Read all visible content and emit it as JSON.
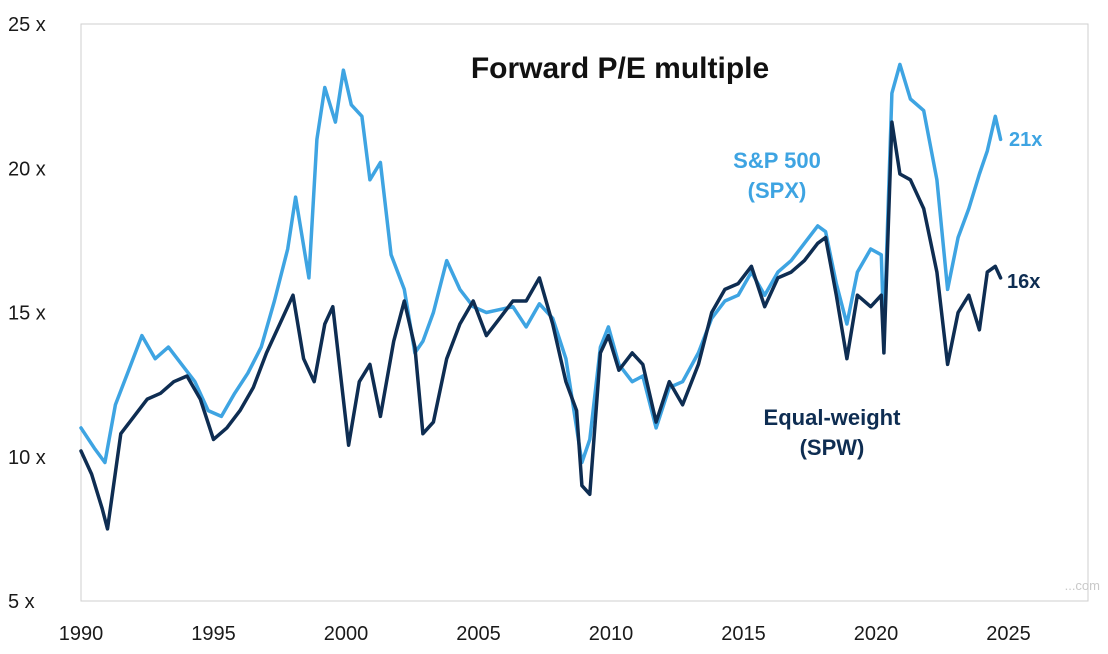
{
  "chart_data": {
    "type": "line",
    "title": "Forward P/E multiple",
    "xlim": [
      1990,
      2028
    ],
    "ylim": [
      5,
      25
    ],
    "x_ticks": [
      1990,
      1995,
      2000,
      2005,
      2010,
      2015,
      2020,
      2025
    ],
    "x_tick_labels": [
      "1990",
      "1995",
      "2000",
      "2005",
      "2010",
      "2015",
      "2020",
      "2025"
    ],
    "y_ticks": [
      5,
      10,
      15,
      20,
      25
    ],
    "y_tick_labels": [
      "5 x",
      "10 x",
      "15 x",
      "20 x",
      "25 x"
    ],
    "grid": false,
    "series": [
      {
        "name_lines": [
          "S&P 500",
          "(SPX)"
        ],
        "color": "#3ea4e2",
        "end_label": "21x",
        "points": [
          [
            1990.0,
            11.0
          ],
          [
            1990.5,
            10.3
          ],
          [
            1990.9,
            9.8
          ],
          [
            1991.3,
            11.8
          ],
          [
            1991.8,
            13.0
          ],
          [
            1992.3,
            14.2
          ],
          [
            1992.8,
            13.4
          ],
          [
            1993.3,
            13.8
          ],
          [
            1993.8,
            13.2
          ],
          [
            1994.3,
            12.6
          ],
          [
            1994.8,
            11.6
          ],
          [
            1995.3,
            11.4
          ],
          [
            1995.8,
            12.2
          ],
          [
            1996.3,
            12.9
          ],
          [
            1996.8,
            13.8
          ],
          [
            1997.3,
            15.4
          ],
          [
            1997.8,
            17.2
          ],
          [
            1998.1,
            19.0
          ],
          [
            1998.6,
            16.2
          ],
          [
            1998.9,
            21.0
          ],
          [
            1999.2,
            22.8
          ],
          [
            1999.6,
            21.6
          ],
          [
            1999.9,
            23.4
          ],
          [
            2000.2,
            22.2
          ],
          [
            2000.6,
            21.8
          ],
          [
            2000.9,
            19.6
          ],
          [
            2001.3,
            20.2
          ],
          [
            2001.7,
            17.0
          ],
          [
            2002.2,
            15.8
          ],
          [
            2002.6,
            13.6
          ],
          [
            2002.9,
            14.0
          ],
          [
            2003.3,
            15.0
          ],
          [
            2003.8,
            16.8
          ],
          [
            2004.3,
            15.8
          ],
          [
            2004.8,
            15.2
          ],
          [
            2005.3,
            15.0
          ],
          [
            2005.8,
            15.1
          ],
          [
            2006.3,
            15.2
          ],
          [
            2006.8,
            14.5
          ],
          [
            2007.3,
            15.3
          ],
          [
            2007.8,
            14.8
          ],
          [
            2008.3,
            13.4
          ],
          [
            2008.7,
            11.0
          ],
          [
            2008.9,
            9.8
          ],
          [
            2009.2,
            10.6
          ],
          [
            2009.6,
            13.8
          ],
          [
            2009.9,
            14.5
          ],
          [
            2010.3,
            13.2
          ],
          [
            2010.8,
            12.6
          ],
          [
            2011.2,
            12.8
          ],
          [
            2011.7,
            11.0
          ],
          [
            2012.2,
            12.4
          ],
          [
            2012.7,
            12.6
          ],
          [
            2013.3,
            13.6
          ],
          [
            2013.8,
            14.8
          ],
          [
            2014.3,
            15.4
          ],
          [
            2014.8,
            15.6
          ],
          [
            2015.3,
            16.4
          ],
          [
            2015.8,
            15.6
          ],
          [
            2016.3,
            16.4
          ],
          [
            2016.8,
            16.8
          ],
          [
            2017.3,
            17.4
          ],
          [
            2017.8,
            18.0
          ],
          [
            2018.1,
            17.8
          ],
          [
            2018.5,
            16.0
          ],
          [
            2018.9,
            14.6
          ],
          [
            2019.3,
            16.4
          ],
          [
            2019.8,
            17.2
          ],
          [
            2020.2,
            17.0
          ],
          [
            2020.3,
            14.2
          ],
          [
            2020.6,
            22.6
          ],
          [
            2020.9,
            23.6
          ],
          [
            2021.3,
            22.4
          ],
          [
            2021.8,
            22.0
          ],
          [
            2022.3,
            19.6
          ],
          [
            2022.7,
            15.8
          ],
          [
            2023.1,
            17.6
          ],
          [
            2023.5,
            18.6
          ],
          [
            2023.9,
            19.8
          ],
          [
            2024.2,
            20.6
          ],
          [
            2024.5,
            21.8
          ],
          [
            2024.7,
            21.0
          ]
        ]
      },
      {
        "name_lines": [
          "Equal-weight",
          "(SPW)"
        ],
        "color": "#0e2d52",
        "end_label": "16x",
        "points": [
          [
            1990.0,
            10.2
          ],
          [
            1990.4,
            9.4
          ],
          [
            1990.8,
            8.2
          ],
          [
            1991.0,
            7.5
          ],
          [
            1991.5,
            10.8
          ],
          [
            1992.0,
            11.4
          ],
          [
            1992.5,
            12.0
          ],
          [
            1993.0,
            12.2
          ],
          [
            1993.5,
            12.6
          ],
          [
            1994.0,
            12.8
          ],
          [
            1994.5,
            12.0
          ],
          [
            1995.0,
            10.6
          ],
          [
            1995.5,
            11.0
          ],
          [
            1996.0,
            11.6
          ],
          [
            1996.5,
            12.4
          ],
          [
            1997.0,
            13.6
          ],
          [
            1997.5,
            14.6
          ],
          [
            1998.0,
            15.6
          ],
          [
            1998.4,
            13.4
          ],
          [
            1998.8,
            12.6
          ],
          [
            1999.2,
            14.6
          ],
          [
            1999.5,
            15.2
          ],
          [
            1999.8,
            12.8
          ],
          [
            2000.1,
            10.4
          ],
          [
            2000.5,
            12.6
          ],
          [
            2000.9,
            13.2
          ],
          [
            2001.3,
            11.4
          ],
          [
            2001.8,
            14.0
          ],
          [
            2002.2,
            15.4
          ],
          [
            2002.6,
            13.8
          ],
          [
            2002.9,
            10.8
          ],
          [
            2003.3,
            11.2
          ],
          [
            2003.8,
            13.4
          ],
          [
            2004.3,
            14.6
          ],
          [
            2004.8,
            15.4
          ],
          [
            2005.3,
            14.2
          ],
          [
            2005.8,
            14.8
          ],
          [
            2006.3,
            15.4
          ],
          [
            2006.8,
            15.4
          ],
          [
            2007.3,
            16.2
          ],
          [
            2007.8,
            14.6
          ],
          [
            2008.3,
            12.6
          ],
          [
            2008.7,
            11.6
          ],
          [
            2008.9,
            9.0
          ],
          [
            2009.2,
            8.7
          ],
          [
            2009.6,
            13.6
          ],
          [
            2009.9,
            14.2
          ],
          [
            2010.3,
            13.0
          ],
          [
            2010.8,
            13.6
          ],
          [
            2011.2,
            13.2
          ],
          [
            2011.7,
            11.2
          ],
          [
            2012.2,
            12.6
          ],
          [
            2012.7,
            11.8
          ],
          [
            2013.3,
            13.2
          ],
          [
            2013.8,
            15.0
          ],
          [
            2014.3,
            15.8
          ],
          [
            2014.8,
            16.0
          ],
          [
            2015.3,
            16.6
          ],
          [
            2015.8,
            15.2
          ],
          [
            2016.3,
            16.2
          ],
          [
            2016.8,
            16.4
          ],
          [
            2017.3,
            16.8
          ],
          [
            2017.8,
            17.4
          ],
          [
            2018.1,
            17.6
          ],
          [
            2018.5,
            15.6
          ],
          [
            2018.9,
            13.4
          ],
          [
            2019.3,
            15.6
          ],
          [
            2019.8,
            15.2
          ],
          [
            2020.2,
            15.6
          ],
          [
            2020.3,
            13.6
          ],
          [
            2020.6,
            21.6
          ],
          [
            2020.9,
            19.8
          ],
          [
            2021.3,
            19.6
          ],
          [
            2021.8,
            18.6
          ],
          [
            2022.3,
            16.4
          ],
          [
            2022.7,
            13.2
          ],
          [
            2023.1,
            15.0
          ],
          [
            2023.5,
            15.6
          ],
          [
            2023.9,
            14.4
          ],
          [
            2024.2,
            16.4
          ],
          [
            2024.5,
            16.6
          ],
          [
            2024.7,
            16.2
          ]
        ]
      }
    ],
    "watermark": "...com"
  }
}
